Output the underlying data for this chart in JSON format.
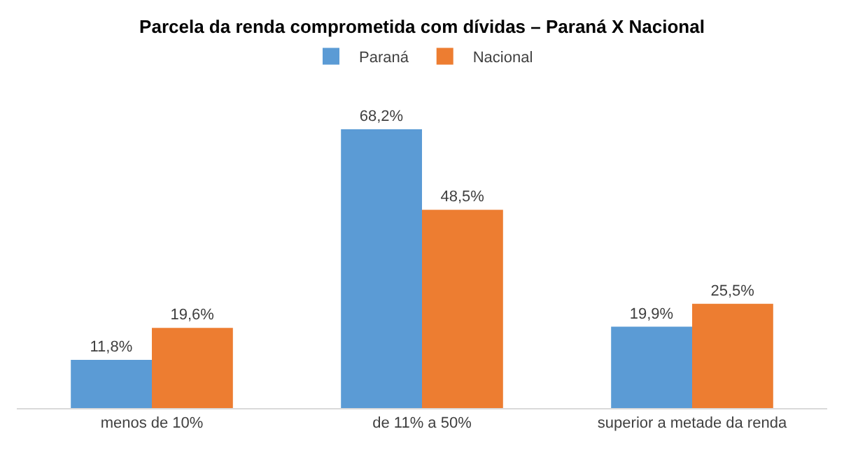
{
  "chart_data": {
    "type": "bar",
    "title": "Parcela da renda comprometida com dívidas – Paraná X Nacional",
    "categories": [
      "menos de 10%",
      "de 11% a 50%",
      "superior a metade da renda"
    ],
    "series": [
      {
        "name": "Paraná",
        "color": "#5b9bd5",
        "values": [
          11.8,
          68.2,
          19.9
        ],
        "value_labels": [
          "11,8%",
          "68,2%",
          "19,9%"
        ]
      },
      {
        "name": "Nacional",
        "color": "#ed7d31",
        "values": [
          19.6,
          48.5,
          25.5
        ],
        "value_labels": [
          "19,6%",
          "48,5%",
          "25,5%"
        ]
      }
    ],
    "legend": "top",
    "grid": false
  }
}
